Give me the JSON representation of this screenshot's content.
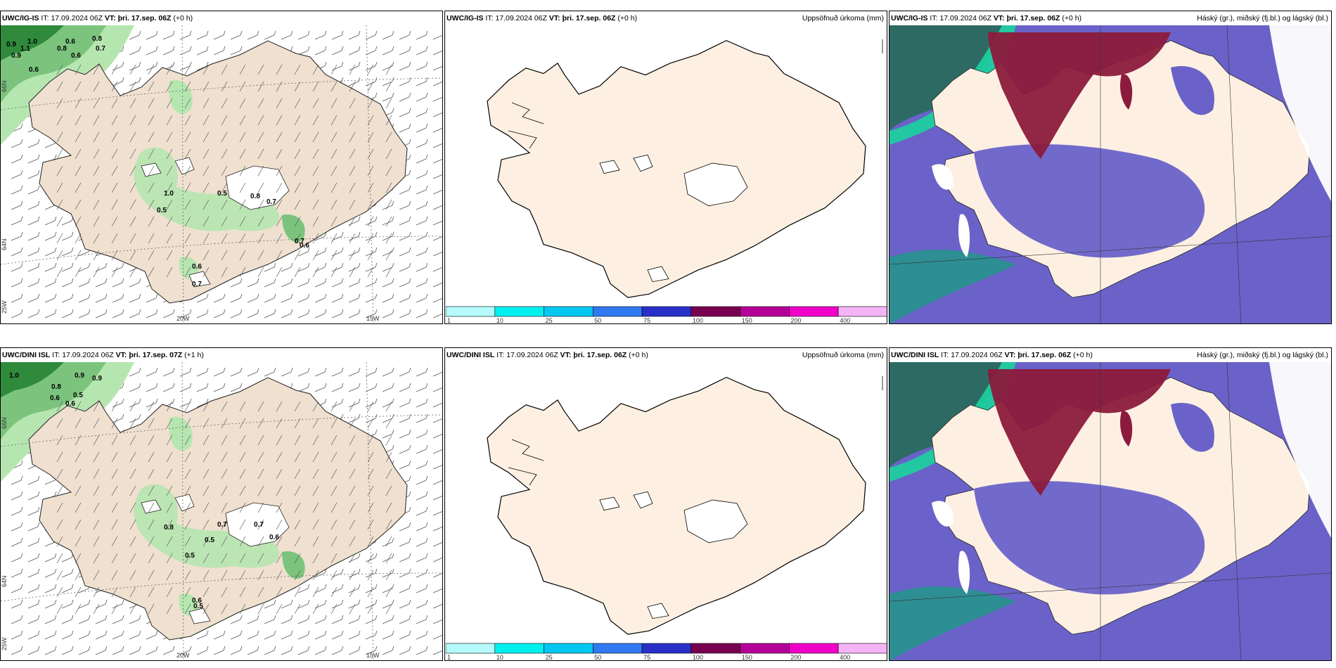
{
  "rows": [
    {
      "wind": {
        "model": "UWC/IG-IS",
        "it_label": "IT:",
        "it": "17.09.2024 06Z",
        "vt_label": "VT:",
        "vt": "þri. 17.sep. 06Z",
        "offset": "(+0 h)",
        "values": [
          "0.9",
          "1.0",
          "1.1",
          "0.8",
          "0.6",
          "0.8",
          "0.7",
          "0.6",
          "0.9",
          "0.6",
          "1.0",
          "0.5",
          "0.5",
          "0.8",
          "0.7",
          "0.6",
          "0.7",
          "0.7",
          "0.6"
        ]
      },
      "precip": {
        "model": "UWC/IG-IS",
        "it_label": "IT:",
        "it": "17.09.2024 06Z",
        "vt_label": "VT:",
        "vt": "þri. 17.sep. 06Z",
        "offset": "(+0 h)",
        "title": "Uppsöfnuð úrkoma (mm)"
      },
      "cloud": {
        "model": "UWC/IG-IS",
        "it_label": "IT:",
        "it": "17.09.2024 06Z",
        "vt_label": "VT:",
        "vt": "þri. 17.sep. 06Z",
        "offset": "(+0 h)",
        "title": "Háský (gr.), miðský (fj.bl.) og lágský (bl.)"
      }
    },
    {
      "wind": {
        "model": "UWC/DINI ISL",
        "it_label": "IT:",
        "it": "17.09.2024 06Z",
        "vt_label": "VT:",
        "vt": "þri. 17.sep. 07Z",
        "offset": "(+1 h)",
        "values": [
          "1.0",
          "0.9",
          "0.9",
          "0.8",
          "0.6",
          "0.5",
          "0.6",
          "0.8",
          "0.5",
          "0.7",
          "0.5",
          "0.7",
          "0.6",
          "0.6",
          "0.5"
        ]
      },
      "precip": {
        "model": "UWC/DINI ISL",
        "it_label": "IT:",
        "it": "17.09.2024 06Z",
        "vt_label": "VT:",
        "vt": "þri. 17.sep. 06Z",
        "offset": "(+0 h)",
        "title": "Uppsöfnuð úrkoma (mm)"
      },
      "cloud": {
        "model": "UWC/DINI ISL",
        "it_label": "IT:",
        "it": "17.09.2024 06Z",
        "vt_label": "VT:",
        "vt": "þri. 17.sep. 06Z",
        "offset": "(+0 h)",
        "title": "Háský (gr.), miðský (fj.bl.) og lágský (bl.)"
      }
    }
  ],
  "axis": {
    "lon_20": "20W",
    "lon_15": "15W",
    "lon_25": "25W",
    "lat_66": "66N",
    "lat_64": "64N"
  },
  "colorbar": {
    "ticks": [
      "1",
      "10",
      "25",
      "50",
      "75",
      "100",
      "150",
      "200",
      "400"
    ],
    "colors": [
      "#b5fbfb",
      "#00f0f0",
      "#00c8f0",
      "#3278f0",
      "#2830c8",
      "#780050",
      "#b40096",
      "#f000c8",
      "#f5b4f5"
    ]
  },
  "colors": {
    "land": "#efe0d0",
    "land_precip": "#fdf0e2",
    "ocean_cloud": "#6a62c8",
    "high_cloud": "#8c1a3c",
    "green": "#2f8a3c",
    "light_green": "#b6e6b0"
  }
}
